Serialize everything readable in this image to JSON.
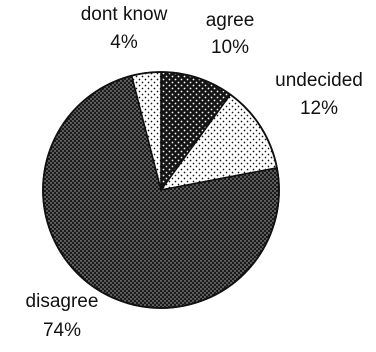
{
  "chart_data": {
    "type": "pie",
    "title": "",
    "slices": [
      {
        "label": "agree",
        "value": 10,
        "pct_label": "10%",
        "pattern": "black-dots",
        "key": "agree"
      },
      {
        "label": "undecided",
        "value": 12,
        "pct_label": "12%",
        "pattern": "sparse-dots",
        "key": "undecided"
      },
      {
        "label": "disagree",
        "value": 74,
        "pct_label": "74%",
        "pattern": "dense-dots",
        "key": "disagree"
      },
      {
        "label": "dont know",
        "value": 4,
        "pct_label": "4%",
        "pattern": "sparse-dots",
        "key": "dont-know"
      }
    ],
    "start": "top, clockwise",
    "legend": "none",
    "colors": {
      "outline": "#111111",
      "dark_fill": "#1a1a1a",
      "light_fill": "#ffffff"
    }
  }
}
